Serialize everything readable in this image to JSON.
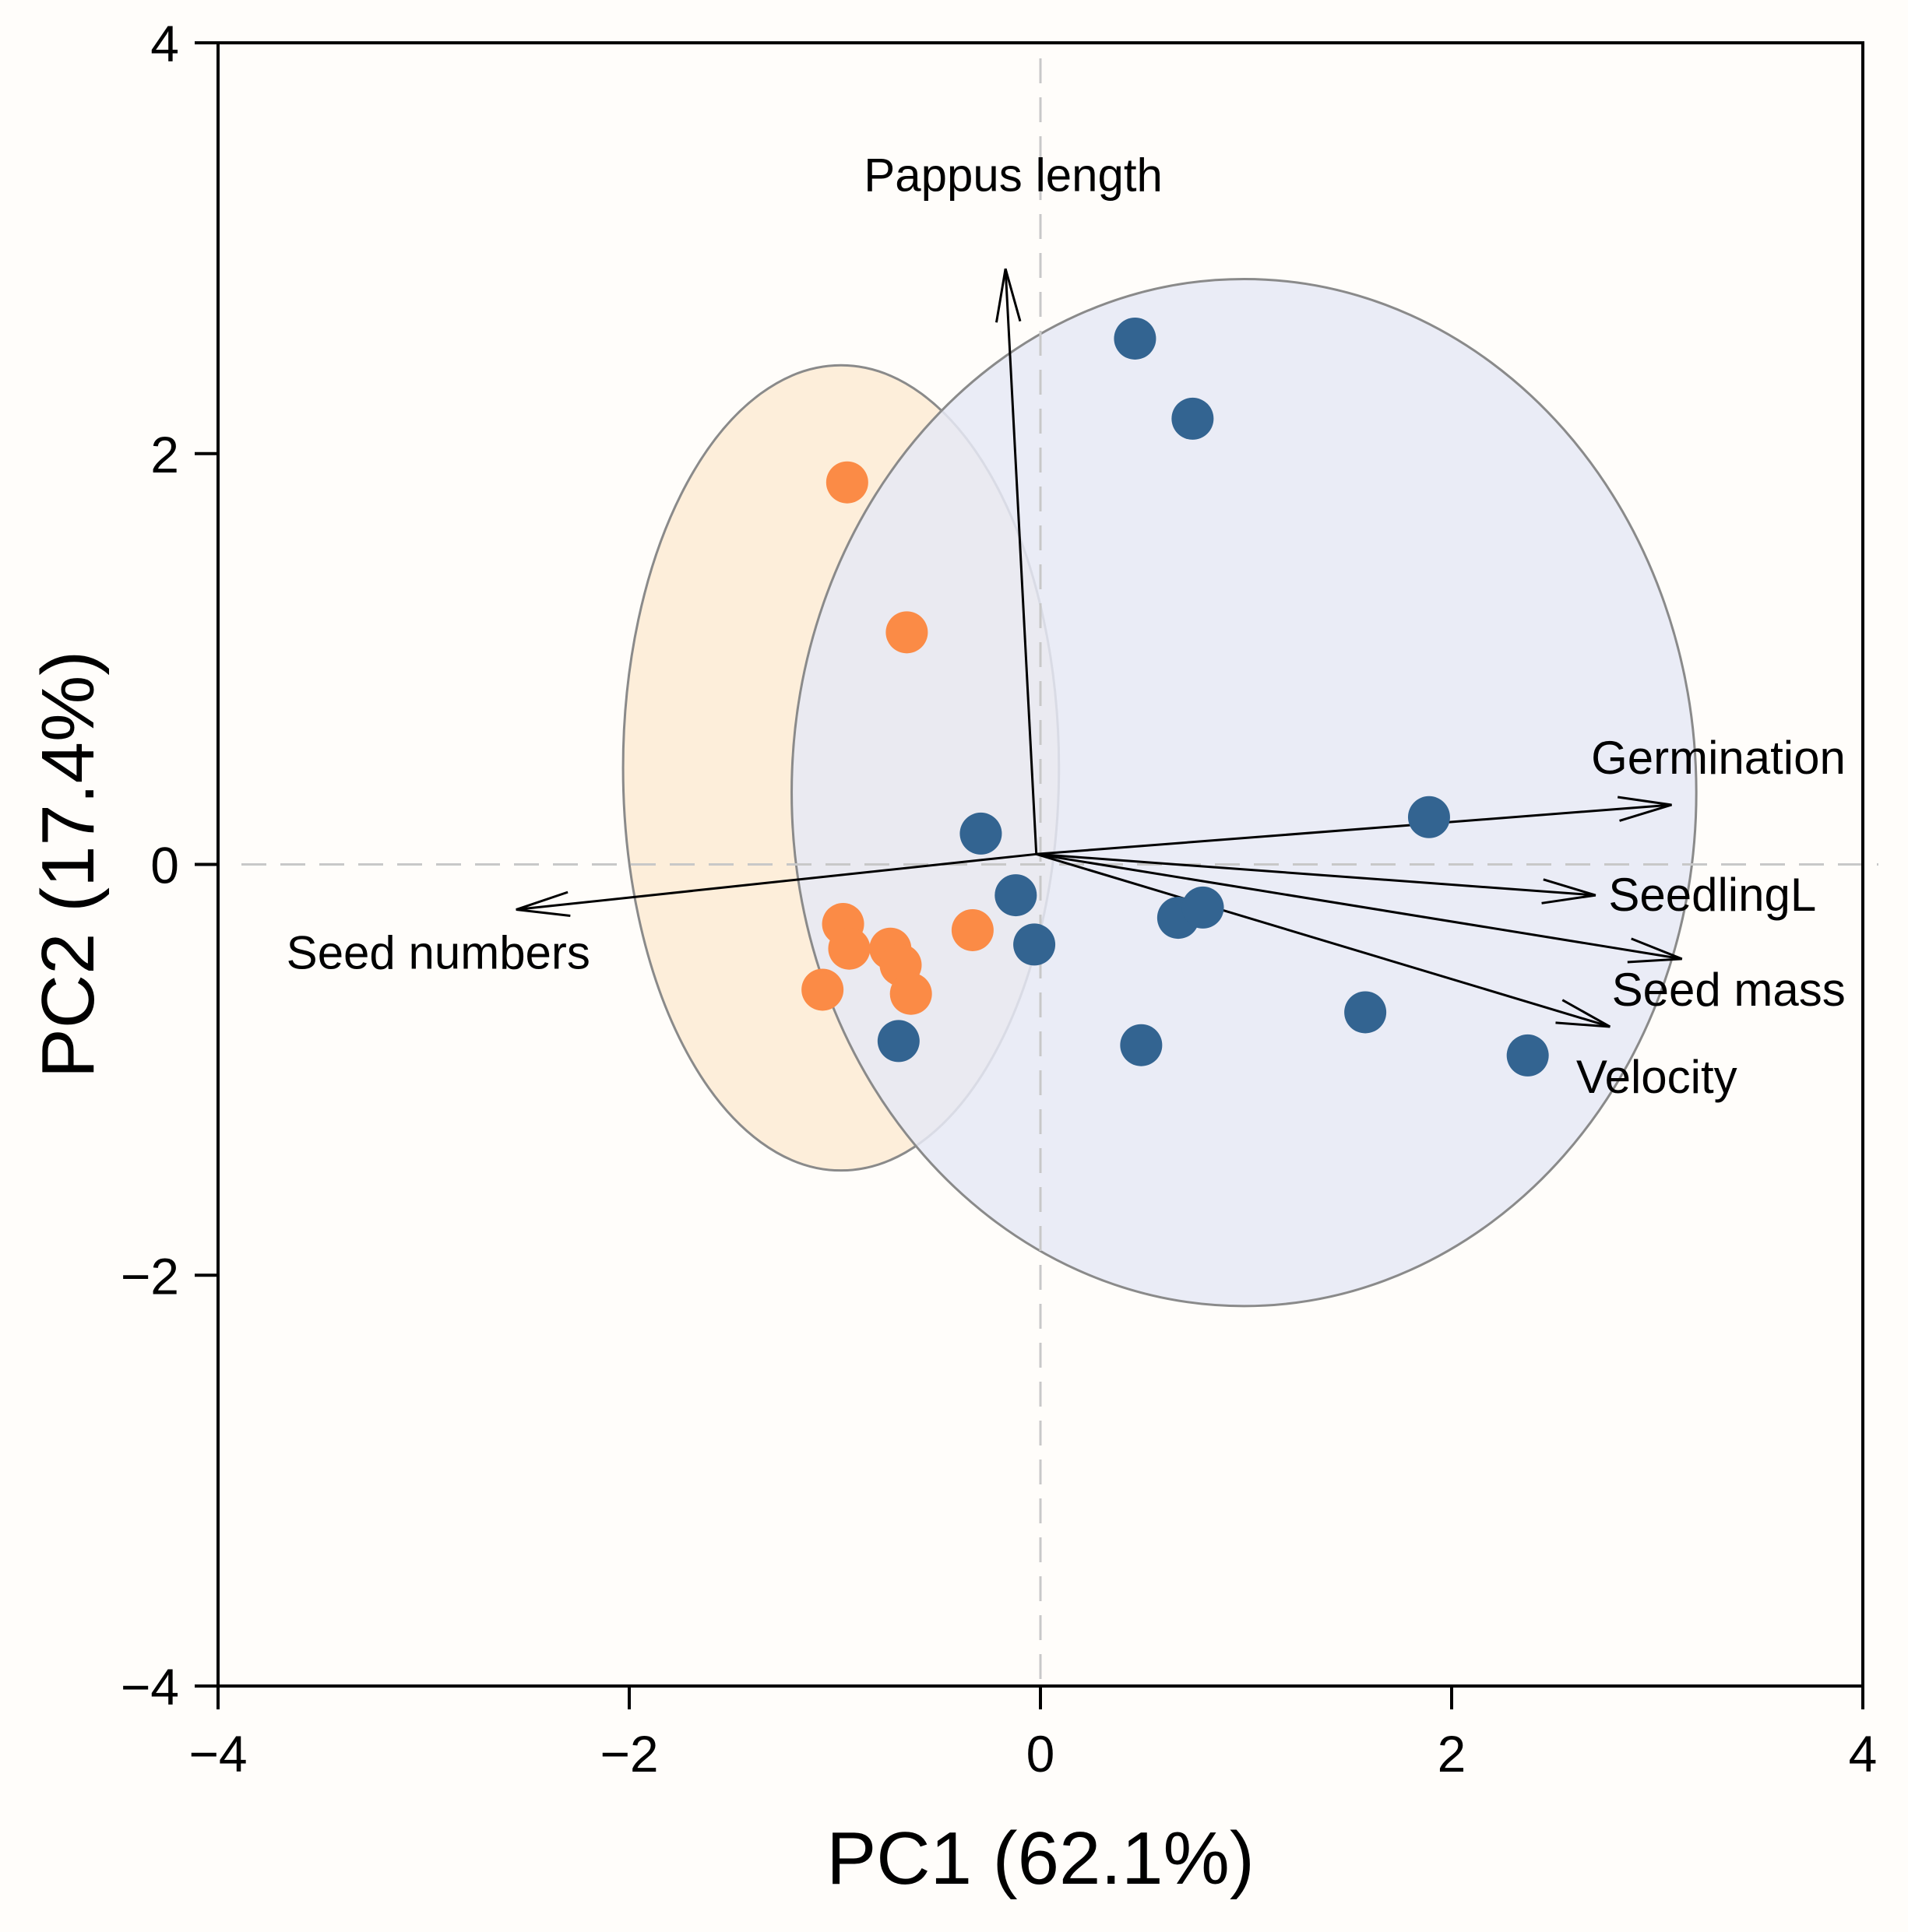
{
  "chart_data": {
    "type": "scatter",
    "subtype": "pca-biplot",
    "xlabel": "PC1 (62.1%)",
    "ylabel": "PC2 (17.4%)",
    "xlim": [
      -4,
      4
    ],
    "ylim": [
      -4,
      4
    ],
    "xticks": [
      -4,
      -2,
      0,
      2,
      4
    ],
    "yticks": [
      -4,
      -2,
      0,
      2,
      4
    ],
    "xtick_labels": [
      "−4",
      "−2",
      "0",
      "2",
      "4"
    ],
    "ytick_labels": [
      "−4",
      "−2",
      "0",
      "2",
      "4"
    ],
    "reference_lines": {
      "x": 0,
      "y": 0
    },
    "colors": {
      "background": "#fffdfa",
      "group_orange": "#fb8b46",
      "group_blue": "#336491",
      "ellipse_orange_fill": "#fdebd4",
      "ellipse_blue_fill": "#e6e9f4",
      "ellipse_stroke": "#8a8a8a",
      "reference": "#c8c8c8"
    },
    "series": [
      {
        "name": "orange-group",
        "color": "#fb8b46",
        "x": [
          -0.94,
          -0.65,
          -0.96,
          -0.93,
          -0.73,
          -0.68,
          -0.63,
          -1.06,
          -0.33
        ],
        "y": [
          1.86,
          1.13,
          -0.29,
          -0.41,
          -0.41,
          -0.49,
          -0.63,
          -0.61,
          -0.32
        ]
      },
      {
        "name": "blue-group",
        "color": "#336491",
        "x": [
          0.46,
          0.74,
          -0.29,
          -0.12,
          -0.03,
          0.67,
          0.79,
          1.58,
          1.89,
          2.37,
          0.49,
          -0.69
        ],
        "y": [
          2.56,
          2.17,
          0.15,
          -0.15,
          -0.39,
          -0.26,
          -0.21,
          -0.72,
          0.23,
          -0.93,
          -0.88,
          -0.86
        ]
      }
    ],
    "ellipses": [
      {
        "name": "orange-ellipse",
        "cx": -0.97,
        "cy": 0.47,
        "rx": 1.06,
        "ry": 1.96,
        "fill": "#fdebd4"
      },
      {
        "name": "blue-ellipse",
        "cx": 0.99,
        "cy": 0.35,
        "rx": 2.2,
        "ry": 2.5,
        "fill": "#e6e9f4"
      }
    ],
    "arrow_origin": [
      -0.02,
      0.05
    ],
    "loadings": [
      {
        "name": "Pappus length",
        "x": -0.17,
        "y": 2.9
      },
      {
        "name": "Seed numbers",
        "x": -2.55,
        "y": -0.22
      },
      {
        "name": "Germination",
        "x": 3.07,
        "y": 0.29
      },
      {
        "name": "SeedlingL",
        "x": 2.7,
        "y": -0.15
      },
      {
        "name": "Seed mass",
        "x": 3.12,
        "y": -0.46
      },
      {
        "name": "Velocity",
        "x": 2.77,
        "y": -0.79
      }
    ]
  }
}
